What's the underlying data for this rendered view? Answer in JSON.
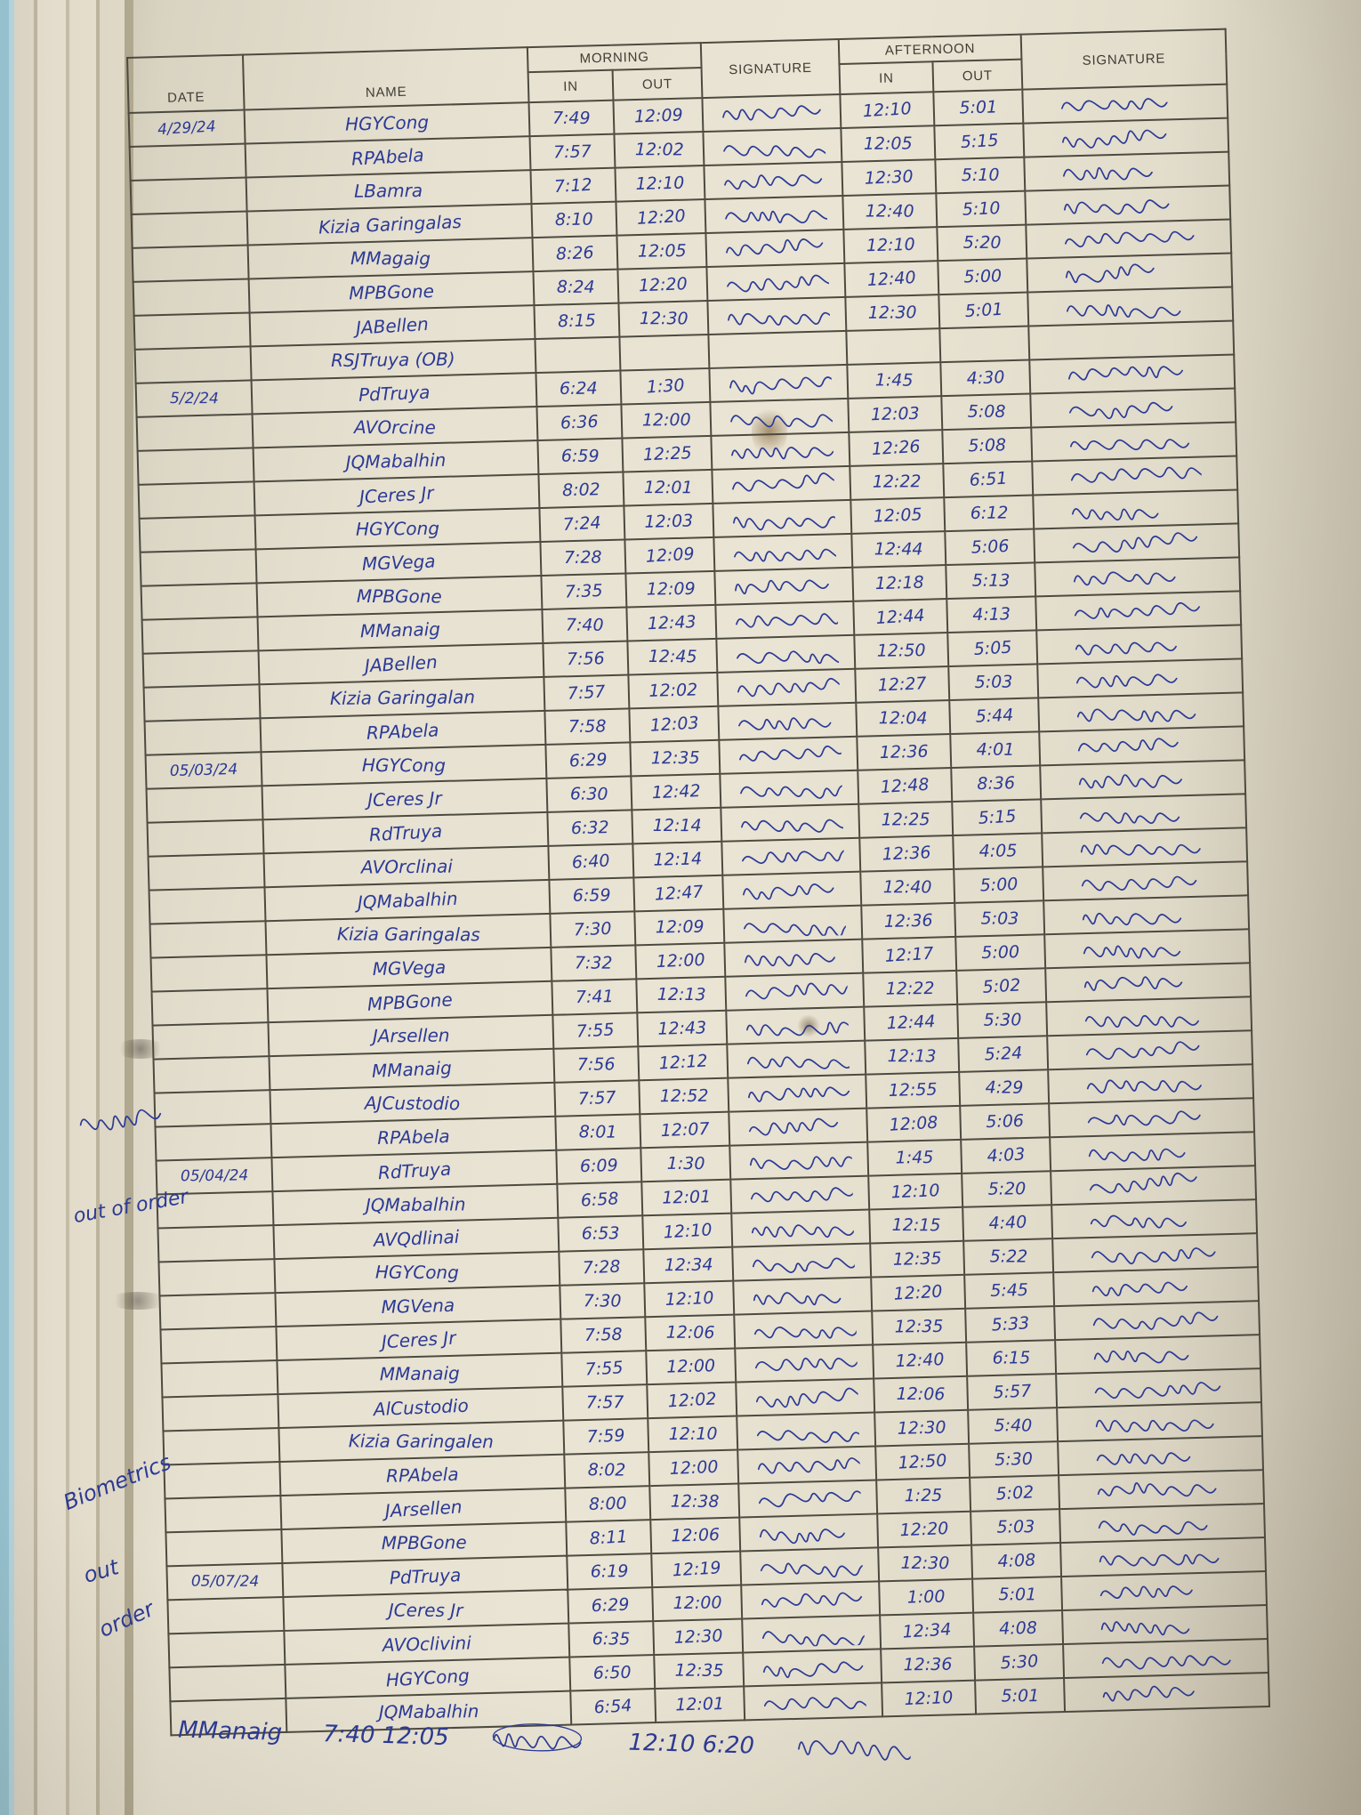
{
  "colors": {
    "ink": "#2b3a96",
    "paper": "#e7e1d1",
    "grid_line": "#4d4a3f"
  },
  "document": {
    "kind": "handwritten attendance log sheet",
    "header": {
      "date": "DATE",
      "name": "NAME",
      "morning": "MORNING",
      "afternoon": "AFTERNOON",
      "in": "IN",
      "out": "OUT",
      "signature": "SIGNATURE"
    },
    "margin_notes": {
      "scribbled_out_word": "(illegible, crossed out)",
      "out_of_order": "out of order",
      "biometrics_1": "Biometrics",
      "biometrics_2": "out",
      "biometrics_3": "order"
    },
    "footer": {
      "name": "MManaig",
      "morning_times": "7:40  12:05",
      "afternoon_times": "12:10  6:20"
    },
    "rows": [
      {
        "date": "4/29/24",
        "name": "HGYCong",
        "m_in": "7:49",
        "m_out": "12:09",
        "m_sig": true,
        "a_in": "12:10",
        "a_out": "5:01",
        "a_sig": true
      },
      {
        "date": "",
        "name": "RPAbela",
        "m_in": "7:57",
        "m_out": "12:02",
        "m_sig": true,
        "a_in": "12:05",
        "a_out": "5:15",
        "a_sig": true
      },
      {
        "date": "",
        "name": "LBamra",
        "m_in": "7:12",
        "m_out": "12:10",
        "m_sig": true,
        "a_in": "12:30",
        "a_out": "5:10",
        "a_sig": true
      },
      {
        "date": "",
        "name": "Kizia Garingalas",
        "m_in": "8:10",
        "m_out": "12:20",
        "m_sig": true,
        "a_in": "12:40",
        "a_out": "5:10",
        "a_sig": true
      },
      {
        "date": "",
        "name": "MMagaig",
        "m_in": "8:26",
        "m_out": "12:05",
        "m_sig": true,
        "a_in": "12:10",
        "a_out": "5:20",
        "a_sig": true
      },
      {
        "date": "",
        "name": "MPBGone",
        "m_in": "8:24",
        "m_out": "12:20",
        "m_sig": true,
        "a_in": "12:40",
        "a_out": "5:00",
        "a_sig": true
      },
      {
        "date": "",
        "name": "JABellen",
        "m_in": "8:15",
        "m_out": "12:30",
        "m_sig": true,
        "a_in": "12:30",
        "a_out": "5:01",
        "a_sig": true
      },
      {
        "date": "",
        "name": "RSJTruya (OB)",
        "m_in": "",
        "m_out": "",
        "m_sig": false,
        "a_in": "",
        "a_out": "",
        "a_sig": false
      },
      {
        "date": "5/2/24",
        "name": "PdTruya",
        "m_in": "6:24",
        "m_out": "1:30",
        "m_sig": true,
        "a_in": "1:45",
        "a_out": "4:30",
        "a_sig": true
      },
      {
        "date": "",
        "name": "AVOrcine",
        "m_in": "6:36",
        "m_out": "12:00",
        "m_sig": true,
        "a_in": "12:03",
        "a_out": "5:08",
        "a_sig": true
      },
      {
        "date": "",
        "name": "JQMabalhin",
        "m_in": "6:59",
        "m_out": "12:25",
        "m_sig": true,
        "a_in": "12:26",
        "a_out": "5:08",
        "a_sig": true
      },
      {
        "date": "",
        "name": "JCeres Jr",
        "m_in": "8:02",
        "m_out": "12:01",
        "m_sig": true,
        "a_in": "12:22",
        "a_out": "6:51",
        "a_sig": true
      },
      {
        "date": "",
        "name": "HGYCong",
        "m_in": "7:24",
        "m_out": "12:03",
        "m_sig": true,
        "a_in": "12:05",
        "a_out": "6:12",
        "a_sig": true
      },
      {
        "date": "",
        "name": "MGVega",
        "m_in": "7:28",
        "m_out": "12:09",
        "m_sig": true,
        "a_in": "12:44",
        "a_out": "5:06",
        "a_sig": true
      },
      {
        "date": "",
        "name": "MPBGone",
        "m_in": "7:35",
        "m_out": "12:09",
        "m_sig": true,
        "a_in": "12:18",
        "a_out": "5:13",
        "a_sig": true
      },
      {
        "date": "",
        "name": "MManaig",
        "m_in": "7:40",
        "m_out": "12:43",
        "m_sig": true,
        "a_in": "12:44",
        "a_out": "4:13",
        "a_sig": true
      },
      {
        "date": "",
        "name": "JABellen",
        "m_in": "7:56",
        "m_out": "12:45",
        "m_sig": true,
        "a_in": "12:50",
        "a_out": "5:05",
        "a_sig": true
      },
      {
        "date": "",
        "name": "Kizia Garingalan",
        "m_in": "7:57",
        "m_out": "12:02",
        "m_sig": true,
        "a_in": "12:27",
        "a_out": "5:03",
        "a_sig": true
      },
      {
        "date": "",
        "name": "RPAbela",
        "m_in": "7:58",
        "m_out": "12:03",
        "m_sig": true,
        "a_in": "12:04",
        "a_out": "5:44",
        "a_sig": true
      },
      {
        "date": "05/03/24",
        "name": "HGYCong",
        "m_in": "6:29",
        "m_out": "12:35",
        "m_sig": true,
        "a_in": "12:36",
        "a_out": "4:01",
        "a_sig": true
      },
      {
        "date": "",
        "name": "JCeres Jr",
        "m_in": "6:30",
        "m_out": "12:42",
        "m_sig": true,
        "a_in": "12:48",
        "a_out": "8:36",
        "a_sig": true
      },
      {
        "date": "",
        "name": "RdTruya",
        "m_in": "6:32",
        "m_out": "12:14",
        "m_sig": true,
        "a_in": "12:25",
        "a_out": "5:15",
        "a_sig": true
      },
      {
        "date": "",
        "name": "AVOrclinai",
        "m_in": "6:40",
        "m_out": "12:14",
        "m_sig": true,
        "a_in": "12:36",
        "a_out": "4:05",
        "a_sig": true
      },
      {
        "date": "",
        "name": "JQMabalhin",
        "m_in": "6:59",
        "m_out": "12:47",
        "m_sig": true,
        "a_in": "12:40",
        "a_out": "5:00",
        "a_sig": true
      },
      {
        "date": "",
        "name": "Kizia Garingalas",
        "m_in": "7:30",
        "m_out": "12:09",
        "m_sig": true,
        "a_in": "12:36",
        "a_out": "5:03",
        "a_sig": true
      },
      {
        "date": "",
        "name": "MGVega",
        "m_in": "7:32",
        "m_out": "12:00",
        "m_sig": true,
        "a_in": "12:17",
        "a_out": "5:00",
        "a_sig": true
      },
      {
        "date": "",
        "name": "MPBGone",
        "m_in": "7:41",
        "m_out": "12:13",
        "m_sig": true,
        "a_in": "12:22",
        "a_out": "5:02",
        "a_sig": true
      },
      {
        "date": "",
        "name": "JArsellen",
        "m_in": "7:55",
        "m_out": "12:43",
        "m_sig": true,
        "a_in": "12:44",
        "a_out": "5:30",
        "a_sig": true
      },
      {
        "date": "",
        "name": "MManaig",
        "m_in": "7:56",
        "m_out": "12:12",
        "m_sig": true,
        "a_in": "12:13",
        "a_out": "5:24",
        "a_sig": true
      },
      {
        "date": "",
        "name": "AJCustodio",
        "m_in": "7:57",
        "m_out": "12:52",
        "m_sig": true,
        "a_in": "12:55",
        "a_out": "4:29",
        "a_sig": true
      },
      {
        "date": "",
        "name": "RPAbela",
        "m_in": "8:01",
        "m_out": "12:07",
        "m_sig": true,
        "a_in": "12:08",
        "a_out": "5:06",
        "a_sig": true
      },
      {
        "date": "05/04/24",
        "name": "RdTruya",
        "m_in": "6:09",
        "m_out": "1:30",
        "m_sig": true,
        "a_in": "1:45",
        "a_out": "4:03",
        "a_sig": true
      },
      {
        "date": "",
        "name": "JQMabalhin",
        "m_in": "6:58",
        "m_out": "12:01",
        "m_sig": true,
        "a_in": "12:10",
        "a_out": "5:20",
        "a_sig": true
      },
      {
        "date": "",
        "name": "AVQdlinai",
        "m_in": "6:53",
        "m_out": "12:10",
        "m_sig": true,
        "a_in": "12:15",
        "a_out": "4:40",
        "a_sig": true
      },
      {
        "date": "",
        "name": "HGYCong",
        "m_in": "7:28",
        "m_out": "12:34",
        "m_sig": true,
        "a_in": "12:35",
        "a_out": "5:22",
        "a_sig": true
      },
      {
        "date": "",
        "name": "MGVena",
        "m_in": "7:30",
        "m_out": "12:10",
        "m_sig": true,
        "a_in": "12:20",
        "a_out": "5:45",
        "a_sig": true
      },
      {
        "date": "",
        "name": "JCeres Jr",
        "m_in": "7:58",
        "m_out": "12:06",
        "m_sig": true,
        "a_in": "12:35",
        "a_out": "5:33",
        "a_sig": true
      },
      {
        "date": "",
        "name": "MManaig",
        "m_in": "7:55",
        "m_out": "12:00",
        "m_sig": true,
        "a_in": "12:40",
        "a_out": "6:15",
        "a_sig": true
      },
      {
        "date": "",
        "name": "AlCustodio",
        "m_in": "7:57",
        "m_out": "12:02",
        "m_sig": true,
        "a_in": "12:06",
        "a_out": "5:57",
        "a_sig": true
      },
      {
        "date": "",
        "name": "Kizia Garingalen",
        "m_in": "7:59",
        "m_out": "12:10",
        "m_sig": true,
        "a_in": "12:30",
        "a_out": "5:40",
        "a_sig": true
      },
      {
        "date": "",
        "name": "RPAbela",
        "m_in": "8:02",
        "m_out": "12:00",
        "m_sig": true,
        "a_in": "12:50",
        "a_out": "5:30",
        "a_sig": true
      },
      {
        "date": "",
        "name": "JArsellen",
        "m_in": "8:00",
        "m_out": "12:38",
        "m_sig": true,
        "a_in": "1:25",
        "a_out": "5:02",
        "a_sig": true
      },
      {
        "date": "",
        "name": "MPBGone",
        "m_in": "8:11",
        "m_out": "12:06",
        "m_sig": true,
        "a_in": "12:20",
        "a_out": "5:03",
        "a_sig": true
      },
      {
        "date": "05/07/24",
        "name": "PdTruya",
        "m_in": "6:19",
        "m_out": "12:19",
        "m_sig": true,
        "a_in": "12:30",
        "a_out": "4:08",
        "a_sig": true
      },
      {
        "date": "",
        "name": "JCeres Jr",
        "m_in": "6:29",
        "m_out": "12:00",
        "m_sig": true,
        "a_in": "1:00",
        "a_out": "5:01",
        "a_sig": true
      },
      {
        "date": "",
        "name": "AVOclivini",
        "m_in": "6:35",
        "m_out": "12:30",
        "m_sig": true,
        "a_in": "12:34",
        "a_out": "4:08",
        "a_sig": true
      },
      {
        "date": "",
        "name": "HGYCong",
        "m_in": "6:50",
        "m_out": "12:35",
        "m_sig": true,
        "a_in": "12:36",
        "a_out": "5:30",
        "a_sig": true
      },
      {
        "date": "",
        "name": "JQMabalhin",
        "m_in": "6:54",
        "m_out": "12:01",
        "m_sig": true,
        "a_in": "12:10",
        "a_out": "5:01",
        "a_sig": true
      }
    ]
  }
}
